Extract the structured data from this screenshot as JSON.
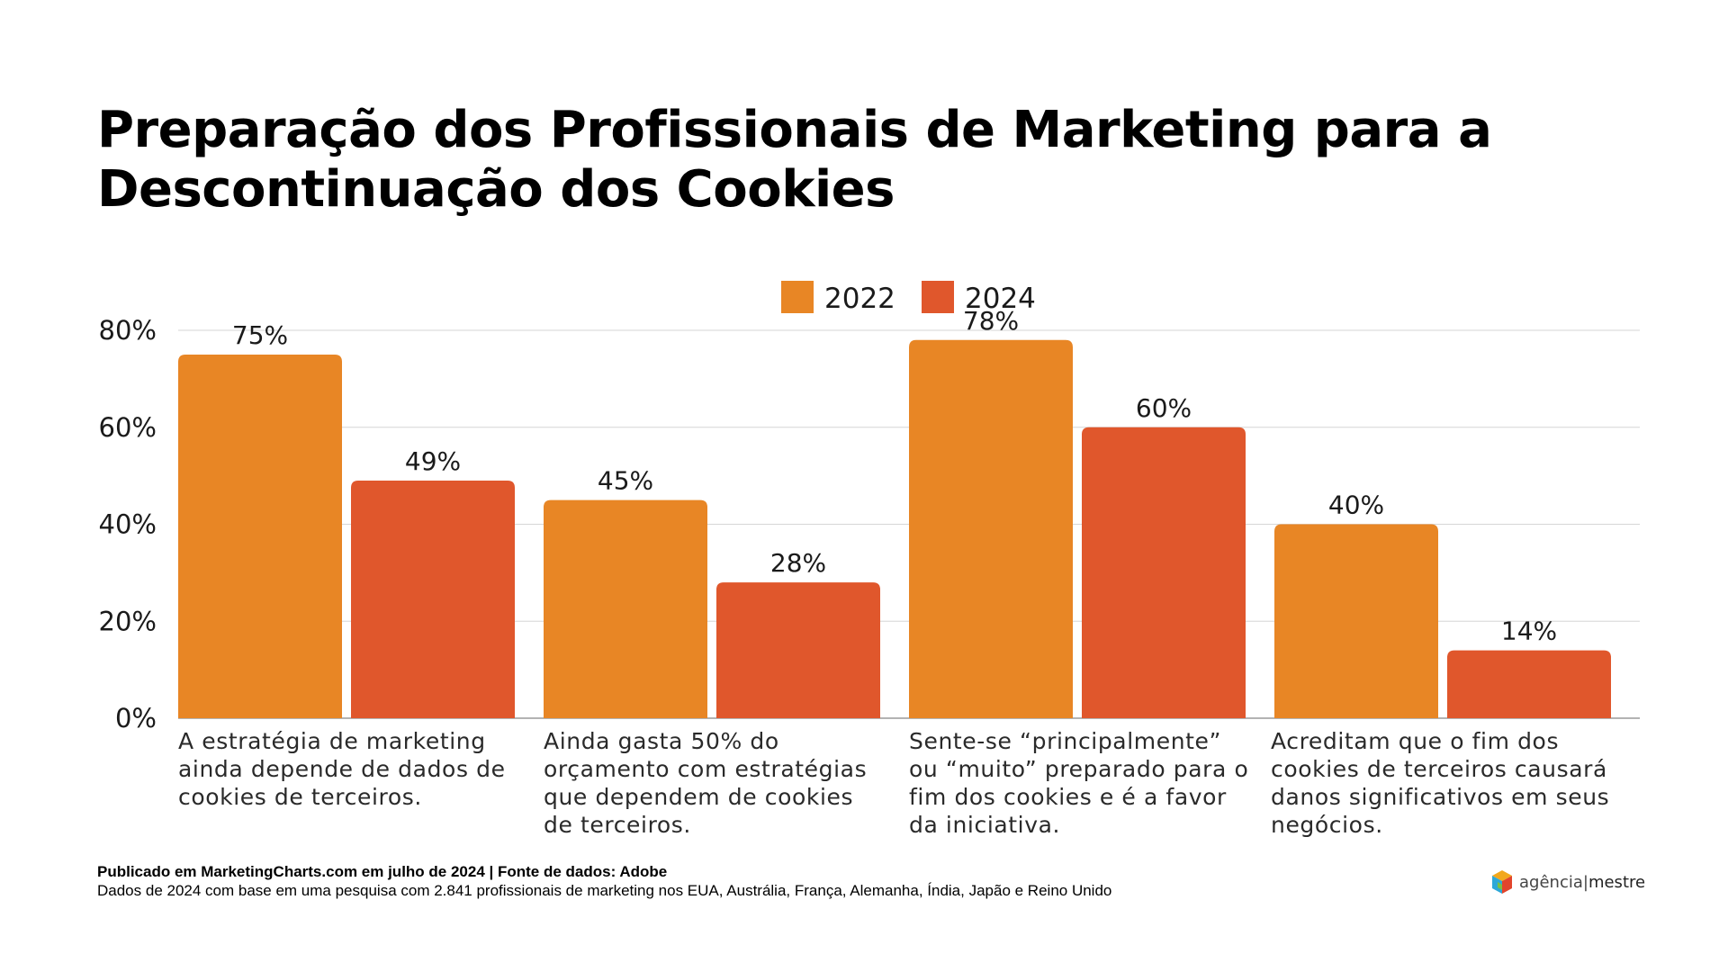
{
  "header": {
    "title_line1": "Preparação dos Profissionais de Marketing para a",
    "title_line2": "Descontinuação dos Cookies"
  },
  "chart_data": {
    "type": "bar",
    "categories_lines": [
      [
        "A estratégia de marketing",
        "ainda depende de dados de",
        "cookies de terceiros."
      ],
      [
        "Ainda gasta 50% do",
        "orçamento com estratégias",
        "que dependem de cookies",
        "de terceiros."
      ],
      [
        "Sente-se “principalmente”",
        "ou “muito” preparado para o",
        "fim dos cookies e é a favor",
        "da iniciativa."
      ],
      [
        "Acreditam que o fim dos",
        "cookies de terceiros causará",
        "danos significativos em seus",
        "negócios."
      ]
    ],
    "series": [
      {
        "name": "2022",
        "color": "#E88625",
        "values": [
          75,
          45,
          78,
          40
        ]
      },
      {
        "name": "2024",
        "color": "#E0572C",
        "values": [
          49,
          28,
          60,
          14
        ]
      }
    ],
    "value_suffix": "%",
    "ylim": [
      0,
      80
    ],
    "yticks": [
      "0%",
      "20%",
      "40%",
      "60%",
      "80%"
    ],
    "grid": true,
    "legend_position": "top-center"
  },
  "footer": {
    "source": "Publicado em MarketingCharts.com em julho de 2024 | Fonte de dados: Adobe",
    "note": "Dados de 2024 com base em uma pesquisa com 2.841 profissionais de marketing nos EUA, Austrália, França, Alemanha, Índia, Japão e Reino Unido"
  },
  "brand": {
    "name_left": "agência",
    "name_right": "mestre",
    "icon": "agencia-mestre-logo-icon"
  }
}
